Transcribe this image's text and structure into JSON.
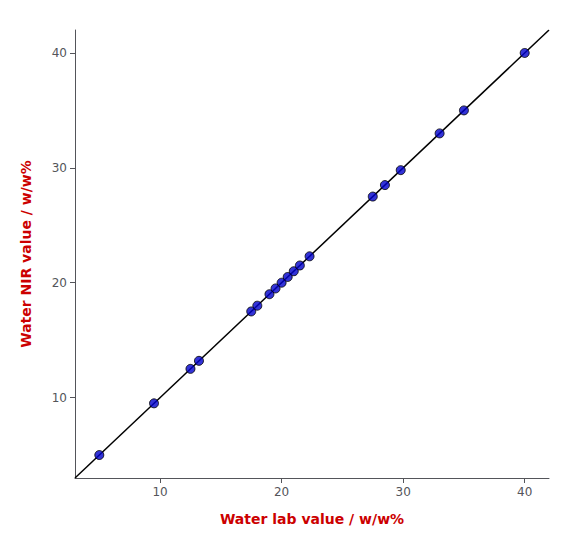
{
  "chart_data": {
    "type": "scatter",
    "xlabel": "Water lab value / w/w%",
    "ylabel": "Water NIR value / w/w%",
    "series": [
      {
        "type": "scatter",
        "color": "#0000CC",
        "marker": "circle",
        "x": [
          5,
          9.5,
          12.5,
          13.2,
          17.5,
          18.0,
          19.0,
          19.5,
          20.0,
          20.5,
          21.0,
          21.5,
          22.3,
          27.5,
          28.5,
          29.8,
          33.0,
          35.0,
          40.0
        ],
        "values": [
          5,
          9.5,
          12.5,
          13.2,
          17.5,
          18.0,
          19.0,
          19.5,
          20.0,
          20.5,
          21.0,
          21.5,
          22.3,
          27.5,
          28.5,
          29.8,
          33.0,
          35.0,
          40.0
        ]
      },
      {
        "type": "line",
        "color": "#000000",
        "line_style": "solid",
        "x": [
          3,
          42
        ],
        "values": [
          3,
          42
        ]
      }
    ],
    "xlim": [
      3,
      42
    ],
    "ylim": [
      3,
      42
    ],
    "xticks": [
      10,
      20,
      30,
      40
    ],
    "yticks": [
      10,
      20,
      30,
      40
    ],
    "grid": false
  }
}
